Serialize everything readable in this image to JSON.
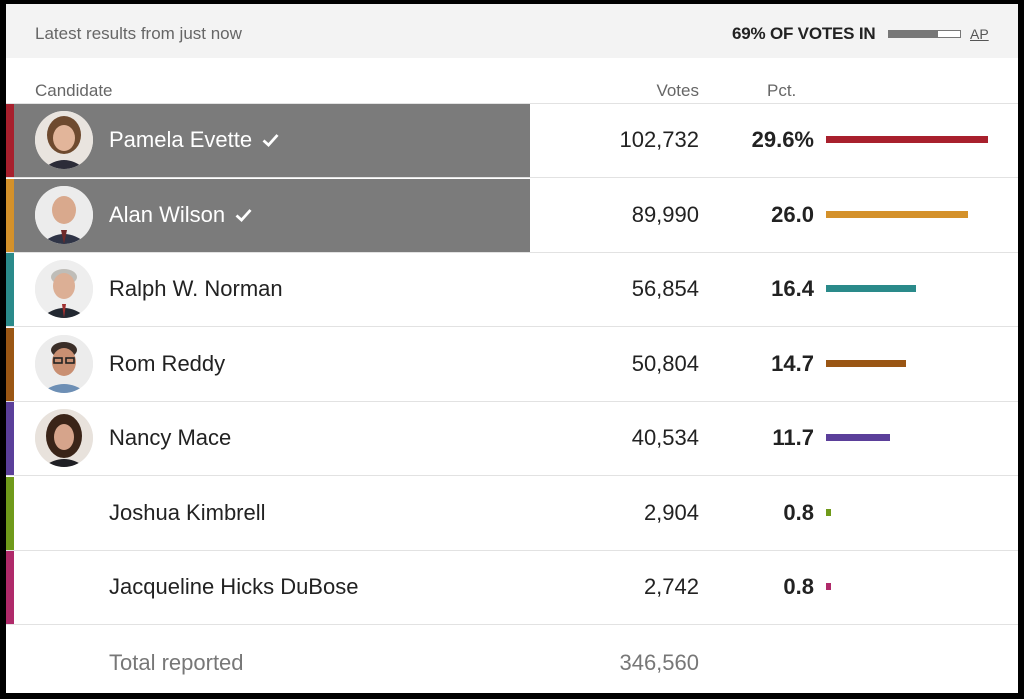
{
  "topbar": {
    "latest": "Latest results from just now",
    "votes_in": "69% OF VOTES IN",
    "votes_in_fraction": 0.69,
    "source": "AP"
  },
  "header": {
    "candidate": "Candidate",
    "votes": "Votes",
    "pct": "Pct."
  },
  "rows": [
    {
      "name": "Pamela Evette",
      "votes": "102,732",
      "pct": "29.6%",
      "pct_value": 29.6,
      "color": "#a8202d",
      "winner": true,
      "photo": true,
      "avatar_icon": "portrait-woman"
    },
    {
      "name": "Alan Wilson",
      "votes": "89,990",
      "pct": "26.0",
      "pct_value": 26.0,
      "color": "#d4912a",
      "winner": true,
      "photo": true,
      "avatar_icon": "portrait-man-bald"
    },
    {
      "name": "Ralph W. Norman",
      "votes": "56,854",
      "pct": "16.4",
      "pct_value": 16.4,
      "color": "#2a8a8a",
      "winner": false,
      "photo": true,
      "avatar_icon": "portrait-man-gray"
    },
    {
      "name": "Rom Reddy",
      "votes": "50,804",
      "pct": "14.7",
      "pct_value": 14.7,
      "color": "#9a5614",
      "winner": false,
      "photo": true,
      "avatar_icon": "portrait-man-glasses"
    },
    {
      "name": "Nancy Mace",
      "votes": "40,534",
      "pct": "11.7",
      "pct_value": 11.7,
      "color": "#5b3f9a",
      "winner": false,
      "photo": true,
      "avatar_icon": "portrait-woman-dark"
    },
    {
      "name": "Joshua Kimbrell",
      "votes": "2,904",
      "pct": "0.8",
      "pct_value": 0.8,
      "color": "#6f9a1a",
      "winner": false,
      "photo": false
    },
    {
      "name": "Jacqueline Hicks DuBose",
      "votes": "2,742",
      "pct": "0.8",
      "pct_value": 0.8,
      "color": "#b02a6a",
      "winner": false,
      "photo": false
    }
  ],
  "total": {
    "label": "Total reported",
    "votes": "346,560"
  }
}
